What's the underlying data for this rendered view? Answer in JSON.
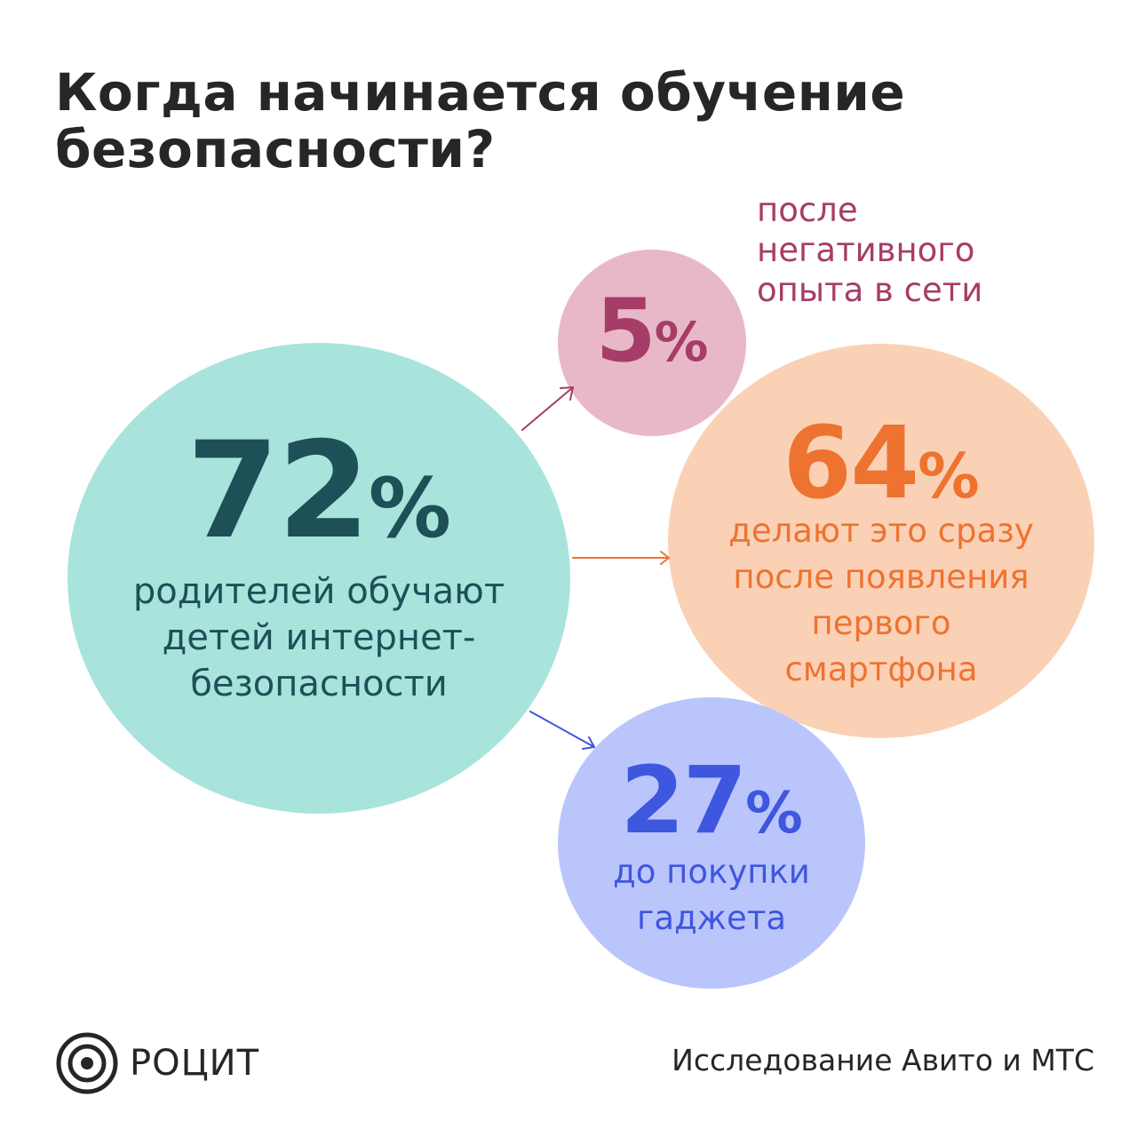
{
  "title": {
    "line1": "Когда начинается обучение",
    "line2": "безопасности?"
  },
  "bubbles": {
    "main": {
      "value": "72",
      "unit": "%",
      "lines": [
        "родителей обучают",
        "детей интернет-",
        "безопасности"
      ],
      "color": "#1e5058",
      "fill": "#a8e4dc"
    },
    "negative": {
      "value": "5",
      "unit": "%",
      "note_lines": [
        "после",
        "негативного",
        "опыта в сети"
      ],
      "color": "#a63d66",
      "fill": "#e9b8c8"
    },
    "first_smartphone": {
      "value": "64",
      "unit": "%",
      "lines": [
        "делают это сразу",
        "после появления",
        "первого",
        "смартфона"
      ],
      "color": "#ee7330",
      "fill": "#fbd1b6"
    },
    "before_purchase": {
      "value": "27",
      "unit": "%",
      "lines": [
        "до покупки",
        "гаджета"
      ],
      "color": "#3f56de",
      "fill": "#bac6fb"
    }
  },
  "footer": {
    "logo_text": "РОЦИТ",
    "logo_icon": "concentric-circles-logo",
    "source": "Исследование Авито и МТС"
  }
}
